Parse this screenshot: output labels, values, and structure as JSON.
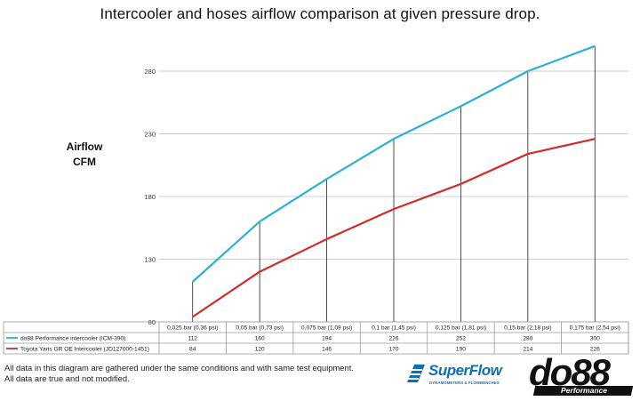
{
  "chart_data": {
    "type": "line",
    "title": "Intercooler and hoses airflow comparison at given pressure drop.",
    "ylabel": [
      "Airflow",
      "CFM"
    ],
    "xlabel": "",
    "categories": [
      "0,025 bar (0,36 psi)",
      "0,05 bar (0,73 psi)",
      "0,075 bar (1,09 psi)",
      "0,1 bar (1,45 psi)",
      "0,125 bar (1,81 psi)",
      "0,15 bar (2,18 psi)",
      "0,175 bar (2,54 psi)"
    ],
    "series": [
      {
        "name": "do88 Performance intercooler (ICM-390)",
        "color": "#2bb0d6",
        "values": [
          112,
          160,
          194,
          226,
          252,
          280,
          300
        ]
      },
      {
        "name": "Toyota Yaris GR OE Intercooler (JD127000-1451)",
        "color": "#d42a2a",
        "values": [
          84,
          120,
          146,
          170,
          190,
          214,
          226
        ]
      }
    ],
    "yticks": [
      80,
      130,
      180,
      230,
      280
    ],
    "ylim": [
      80,
      300
    ],
    "grid": true,
    "legend": "table-below"
  },
  "footnote": {
    "line1": "All data in this diagram are gathered under the same conditions and with same test equipment.",
    "line2": "All data are true and not modified."
  },
  "logos": {
    "superflow": "SuperFlow",
    "superflow_tag": "DYNAMOMETERS & FLOWBENCHES",
    "do88": "do88",
    "do88_sub": "Performance"
  }
}
